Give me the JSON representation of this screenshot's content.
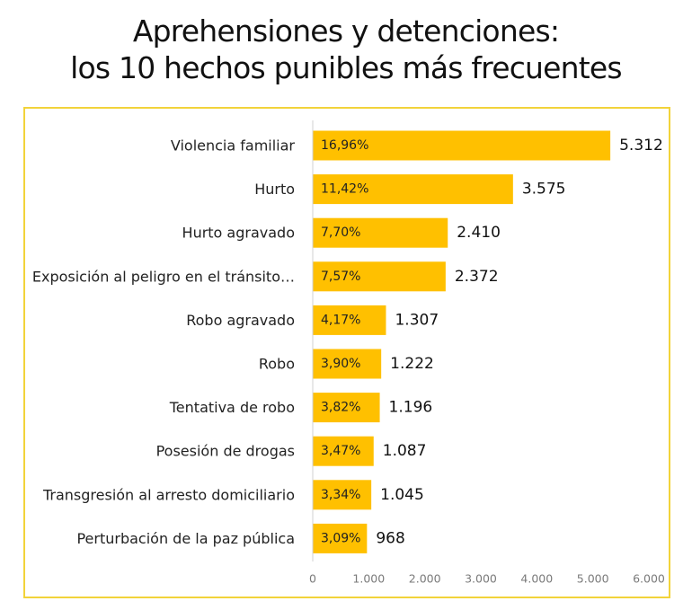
{
  "chart_data": {
    "type": "bar",
    "orientation": "horizontal",
    "title_lines": [
      "Aprehensiones y detenciones:",
      "los 10 hechos punibles más frecuentes"
    ],
    "categories": [
      "Violencia familiar",
      "Hurto",
      "Hurto agravado",
      "Exposición al peligro en el tránsito…",
      "Robo agravado",
      "Robo",
      "Tentativa de robo",
      "Posesión de drogas",
      "Transgresión al arresto domiciliario",
      "Perturbación de la paz pública"
    ],
    "values": [
      5312,
      3575,
      2410,
      2372,
      1307,
      1222,
      1196,
      1087,
      1045,
      968
    ],
    "value_labels": [
      "5.312",
      "3.575",
      "2.410",
      "2.372",
      "1.307",
      "1.222",
      "1.196",
      "1.087",
      "1.045",
      "968"
    ],
    "percent_labels": [
      "16,96%",
      "11,42%",
      "7,70%",
      "7,57%",
      "4,17%",
      "3,90%",
      "3,82%",
      "3,47%",
      "3,34%",
      "3,09%"
    ],
    "xlim": [
      0,
      6000
    ],
    "x_ticks": [
      0,
      1000,
      2000,
      3000,
      4000,
      5000,
      6000
    ],
    "x_tick_labels": [
      "0",
      "1.000",
      "2.000",
      "3.000",
      "4.000",
      "5.000",
      "6.000"
    ],
    "grid": false,
    "legend": "none",
    "bar_color": "#ffc000",
    "frame_color": "#f2d33a"
  }
}
